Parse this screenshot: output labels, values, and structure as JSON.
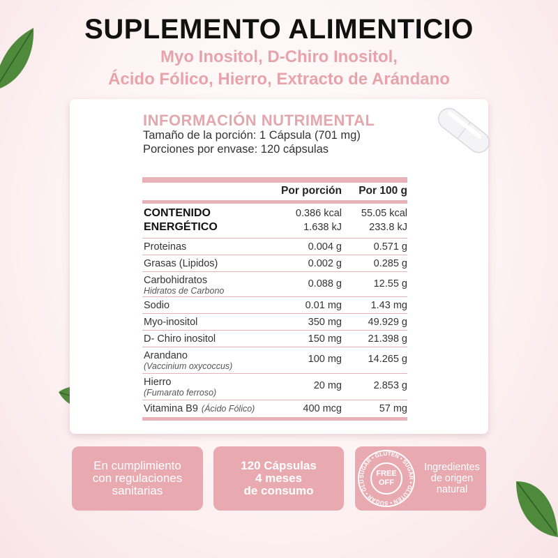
{
  "header": {
    "title": "SUPLEMENTO ALIMENTICIO",
    "subtitle": [
      "Myo Inositol, D-Chiro Inositol,",
      "Ácido Fólico, Hierro, Extracto de Arándano"
    ]
  },
  "nutrition": {
    "title": "INFORMACIÓN NUTRIMENTAL",
    "serving_size": "Tamaño de la porción: 1 Cápsula (701 mg)",
    "servings": "Porciones por envase: 120 cápsulas",
    "columns": [
      "Por porción",
      "Por 100 g"
    ],
    "rows": [
      {
        "name": [
          "CONTENIDO",
          "ENERGÉTICO"
        ],
        "per_serving": [
          "0.386 kcal",
          "1.638 kJ"
        ],
        "per_100g": [
          "55.05 kcal",
          "233.8  kJ"
        ]
      },
      {
        "name": [
          "Proteinas"
        ],
        "per_serving": [
          "0.004 g"
        ],
        "per_100g": [
          "0.571 g"
        ]
      },
      {
        "name": [
          "Grasas (Lipidos)"
        ],
        "per_serving": [
          "0.002 g"
        ],
        "per_100g": [
          "0.285 g"
        ]
      },
      {
        "name": [
          "Carbohidratos"
        ],
        "note": "Hidratos de Carbono",
        "per_serving": [
          "0.088 g"
        ],
        "per_100g": [
          "12.55 g"
        ]
      },
      {
        "name": [
          "Sodio"
        ],
        "per_serving": [
          "0.01 mg"
        ],
        "per_100g": [
          "1.43 mg"
        ]
      },
      {
        "name": [
          "Myo-inositol"
        ],
        "per_serving": [
          "350 mg"
        ],
        "per_100g": [
          "49.929 g"
        ]
      },
      {
        "name": [
          "D- Chiro inositol"
        ],
        "per_serving": [
          "150 mg"
        ],
        "per_100g": [
          "21.398 g"
        ]
      },
      {
        "name": [
          "Arandano"
        ],
        "note": "(Vaccinium oxycoccus)",
        "per_serving": [
          "100 mg"
        ],
        "per_100g": [
          "14.265 g"
        ]
      },
      {
        "name": [
          "Hierro"
        ],
        "note": "(Fumarato ferroso)",
        "per_serving": [
          "20 mg"
        ],
        "per_100g": [
          "2.853 g"
        ]
      },
      {
        "name": [
          "Vitamina B9"
        ],
        "inline_note": "(Ácido Fólico)",
        "per_serving": [
          "400 mcg"
        ],
        "per_100g": [
          "57 mg"
        ]
      }
    ]
  },
  "features": [
    {
      "lines": [
        "En cumplimiento",
        "con regulaciones",
        "sanitarias"
      ]
    },
    {
      "lines": [
        "120 Cápsulas",
        "4 meses",
        "de consumo"
      ]
    },
    {
      "badge": {
        "ring": "SUGAR • GLUTEN • SUGAR • GLUTEN • SUGAR • GLUTEN •",
        "lines": [
          "FREE",
          "OFF"
        ]
      },
      "lines": [
        "Ingredientes",
        "de origen",
        "natural"
      ]
    }
  ]
}
